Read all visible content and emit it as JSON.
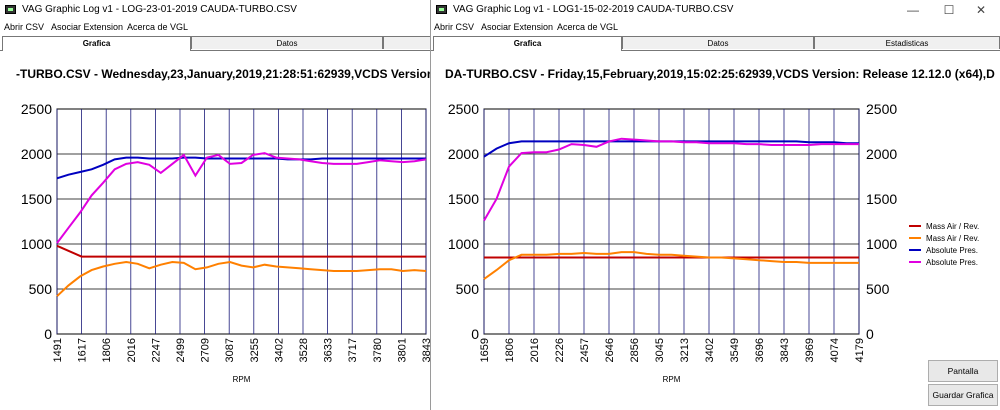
{
  "left_window": {
    "title": "VAG Graphic Log  v1 -  LOG-23-01-2019 CAUDA-TURBO.CSV",
    "menu": [
      "Abrir CSV",
      "Asociar Extension",
      "Acerca de VGL"
    ],
    "tabs": [
      "Grafica",
      "Datos"
    ],
    "chart_title": "-TURBO.CSV - Wednesday,23,January,2019,21:28:51:62939,VCDS Version:"
  },
  "right_window": {
    "title": "VAG Graphic Log  v1 -  LOG1-15-02-2019 CAUDA-TURBO.CSV",
    "menu": [
      "Abrir CSV",
      "Asociar Extension",
      "Acerca de VGL"
    ],
    "tabs": [
      "Grafica",
      "Datos",
      "Estadisticas"
    ],
    "chart_title": "DA-TURBO.CSV - Friday,15,February,2019,15:02:25:62939,VCDS Version: Release 12.12.0 (x64),D",
    "buttons": {
      "full_screen": "Pantalla Completa",
      "save_chart": "Guardar Grafica"
    },
    "window_controls": {
      "minimize": "—",
      "maximize": "☐",
      "close": "✕"
    }
  },
  "chart_data": [
    {
      "type": "line",
      "title": "-TURBO.CSV - Wednesday,23,January,2019,21:28:51:62939,VCDS Version:",
      "xlabel": "RPM",
      "ylabel": "",
      "ylim": [
        0,
        2500
      ],
      "yticks": [
        0,
        500,
        1000,
        1500,
        2000,
        2500
      ],
      "x_ticks": [
        "1491",
        "1617",
        "1806",
        "2016",
        "2247",
        "2499",
        "2709",
        "3087",
        "3255",
        "3402",
        "3528",
        "3633",
        "3717",
        "3780",
        "3801",
        "3843"
      ],
      "grid": true,
      "series": [
        {
          "color": "#c00000",
          "values": [
            980,
            860,
            860,
            860,
            860,
            860,
            860,
            860,
            860,
            860,
            860,
            860,
            860,
            860,
            860,
            860
          ]
        },
        {
          "color": "#ff8000",
          "values": [
            420,
            540,
            640,
            710,
            750,
            780,
            800,
            780,
            730,
            770,
            800,
            790,
            720,
            740,
            780,
            800,
            760,
            740,
            770,
            750,
            740,
            730,
            720,
            710,
            700,
            700,
            700,
            710,
            720,
            720,
            700,
            710,
            700
          ]
        },
        {
          "color": "#0000c0",
          "values": [
            1730,
            1770,
            1800,
            1830,
            1880,
            1940,
            1960,
            1960,
            1950,
            1950,
            1950,
            1960,
            1960,
            1950,
            1950,
            1950,
            1950,
            1950,
            1950,
            1950,
            1940,
            1940,
            1940,
            1950,
            1950,
            1950,
            1950,
            1950,
            1950,
            1950,
            1950,
            1950,
            1950
          ]
        },
        {
          "color": "#e000e0",
          "values": [
            1010,
            1180,
            1350,
            1540,
            1680,
            1830,
            1890,
            1910,
            1880,
            1790,
            1890,
            1990,
            1760,
            1960,
            1990,
            1890,
            1900,
            1990,
            2010,
            1960,
            1950,
            1940,
            1920,
            1900,
            1890,
            1890,
            1890,
            1910,
            1930,
            1920,
            1910,
            1920,
            1940
          ]
        }
      ]
    },
    {
      "type": "line",
      "title": "DA-TURBO.CSV - Friday,15,February,2019,15:02:25:62939,VCDS Version: Release 12.12.0 (x64),D",
      "xlabel": "RPM",
      "ylabel": "",
      "ylim": [
        0,
        2500
      ],
      "yticks": [
        0,
        500,
        1000,
        1500,
        2000,
        2500
      ],
      "x_ticks": [
        "1659",
        "1806",
        "2016",
        "2226",
        "2457",
        "2646",
        "2856",
        "3045",
        "3213",
        "3402",
        "3549",
        "3696",
        "3843",
        "3969",
        "4074",
        "4179"
      ],
      "grid": true,
      "legend": [
        "Mass Air / Rev.",
        "Mass Air / Rev.",
        "Absolute Pres.",
        "Absolute Pres."
      ],
      "legend_placement": "right",
      "series": [
        {
          "name": "Mass Air / Rev.",
          "color": "#c00000",
          "values": [
            850,
            850,
            850,
            850,
            850,
            850,
            850,
            850,
            850,
            850,
            850,
            850,
            850,
            850,
            850,
            850,
            850,
            850,
            850,
            850,
            850,
            850,
            850,
            850,
            850,
            850,
            850,
            850,
            850,
            850,
            850
          ]
        },
        {
          "name": "Mass Air / Rev.",
          "color": "#ff8000",
          "values": [
            610,
            710,
            820,
            880,
            880,
            880,
            890,
            890,
            900,
            890,
            890,
            910,
            910,
            890,
            880,
            880,
            870,
            860,
            850,
            850,
            840,
            830,
            820,
            810,
            800,
            800,
            790,
            790,
            790,
            790,
            790
          ]
        },
        {
          "name": "Absolute Pres.",
          "color": "#0000c0",
          "values": [
            1970,
            2060,
            2120,
            2140,
            2140,
            2140,
            2140,
            2140,
            2140,
            2140,
            2140,
            2140,
            2140,
            2140,
            2140,
            2140,
            2140,
            2140,
            2140,
            2140,
            2140,
            2140,
            2140,
            2140,
            2140,
            2140,
            2130,
            2130,
            2130,
            2120,
            2120
          ]
        },
        {
          "name": "Absolute Pres.",
          "color": "#e000e0",
          "values": [
            1260,
            1500,
            1860,
            2010,
            2020,
            2020,
            2050,
            2110,
            2100,
            2080,
            2140,
            2170,
            2160,
            2150,
            2140,
            2140,
            2130,
            2130,
            2120,
            2120,
            2120,
            2110,
            2110,
            2100,
            2100,
            2100,
            2100,
            2110,
            2110,
            2110,
            2110
          ]
        }
      ]
    }
  ]
}
